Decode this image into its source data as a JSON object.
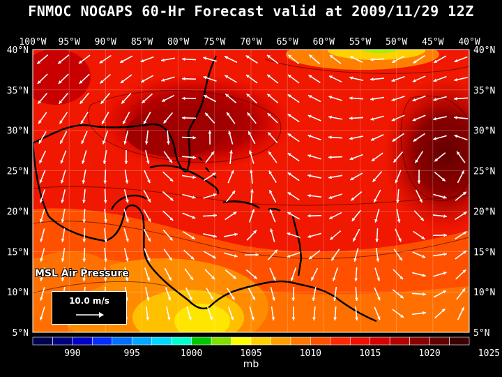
{
  "title": "FNMOC NOGAPS 60-Hr Forecast valid at 2009/11/29 12Z",
  "lon_labels": [
    "100°W",
    "95°W",
    "90°W",
    "85°W",
    "80°W",
    "75°W",
    "70°W",
    "65°W",
    "60°W",
    "55°W",
    "50°W",
    "45°W",
    "40°W"
  ],
  "lat_labels": [
    "40°N",
    "35°N",
    "30°N",
    "25°N",
    "20°N",
    "15°N",
    "10°N",
    "5°N"
  ],
  "field_label": "MSL Air Pressure",
  "reference_vector": {
    "label": "10.0 m/s"
  },
  "colorbar": {
    "unit": "mb",
    "tick_labels": [
      "990",
      "995",
      "1000",
      "1005",
      "1010",
      "1015",
      "1020",
      "1025"
    ],
    "colors": [
      "#000050",
      "#000080",
      "#0000c8",
      "#0030ff",
      "#0070ff",
      "#00a8ff",
      "#00d8ff",
      "#00ffd0",
      "#00c800",
      "#80e000",
      "#ffff00",
      "#ffd000",
      "#ffa000",
      "#ff7800",
      "#ff5000",
      "#ff2800",
      "#f01000",
      "#d80000",
      "#b40000",
      "#8c0000",
      "#640000",
      "#3c0000"
    ]
  },
  "colors": {
    "background": "#000000",
    "land_outline": "#000000",
    "wind_vectors": "#ffffff",
    "gridlines": "#ffffff"
  }
}
